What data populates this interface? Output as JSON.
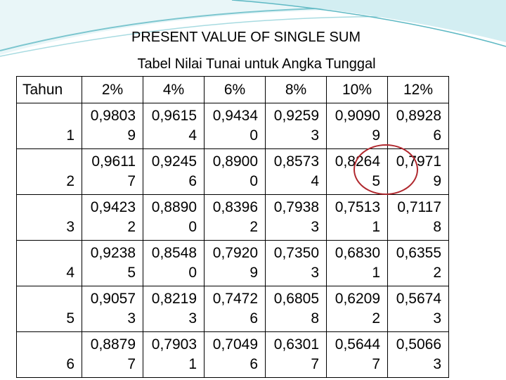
{
  "title": "PRESENT VALUE OF SINGLE SUM",
  "subtitle": "Tabel Nilai Tunai untuk Angka Tunggal",
  "table": {
    "headers": [
      "Tahun",
      "2%",
      "4%",
      "6%",
      "8%",
      "10%",
      "12%"
    ],
    "rows": [
      {
        "year": "1",
        "cells": [
          [
            "0,9803",
            "9"
          ],
          [
            "0,9615",
            "4"
          ],
          [
            "0,9434",
            "0"
          ],
          [
            "0,9259",
            "3"
          ],
          [
            "0,9090",
            "9"
          ],
          [
            "0,8928",
            "6"
          ]
        ]
      },
      {
        "year": "2",
        "cells": [
          [
            "0,9611",
            "7"
          ],
          [
            "0,9245",
            "6"
          ],
          [
            "0,8900",
            "0"
          ],
          [
            "0,8573",
            "4"
          ],
          [
            "0,8264",
            "5"
          ],
          [
            "0,7971",
            "9"
          ]
        ]
      },
      {
        "year": "3",
        "cells": [
          [
            "0,9423",
            "2"
          ],
          [
            "0,8890",
            "0"
          ],
          [
            "0,8396",
            "2"
          ],
          [
            "0,7938",
            "3"
          ],
          [
            "0,7513",
            "1"
          ],
          [
            "0,7117",
            "8"
          ]
        ]
      },
      {
        "year": "4",
        "cells": [
          [
            "0,9238",
            "5"
          ],
          [
            "0,8548",
            "0"
          ],
          [
            "0,7920",
            "9"
          ],
          [
            "0,7350",
            "3"
          ],
          [
            "0,6830",
            "1"
          ],
          [
            "0,6355",
            "2"
          ]
        ]
      },
      {
        "year": "5",
        "cells": [
          [
            "0,9057",
            "3"
          ],
          [
            "0,8219",
            "3"
          ],
          [
            "0,7472",
            "6"
          ],
          [
            "0,6805",
            "8"
          ],
          [
            "0,6209",
            "2"
          ],
          [
            "0,5674",
            "3"
          ]
        ]
      },
      {
        "year": "6",
        "cells": [
          [
            "0,8879",
            "7"
          ],
          [
            "0,7903",
            "1"
          ],
          [
            "0,7049",
            "6"
          ],
          [
            "0,6301",
            "7"
          ],
          [
            "0,5644",
            "7"
          ],
          [
            "0,5066",
            "3"
          ]
        ]
      }
    ]
  },
  "colors": {
    "accent_teal": "#5fb9c4",
    "highlight_circle": "#b0282e"
  }
}
